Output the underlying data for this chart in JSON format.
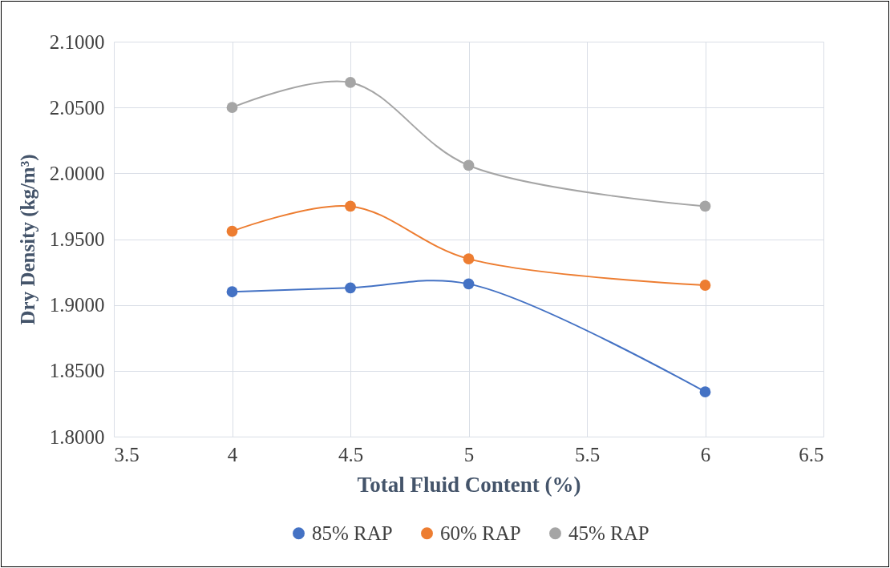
{
  "chart_data": {
    "type": "line",
    "xlabel": "Total Fluid Content (%)",
    "ylabel": "Dry Density (kg/m³)",
    "x": [
      4,
      4.5,
      5,
      6
    ],
    "series": [
      {
        "name": "85% RAP",
        "color": "#4472c4",
        "values": [
          1.91,
          1.913,
          1.916,
          1.834
        ]
      },
      {
        "name": "60% RAP",
        "color": "#ed7d31",
        "values": [
          1.956,
          1.975,
          1.935,
          1.915
        ]
      },
      {
        "name": "45% RAP",
        "color": "#a5a5a5",
        "values": [
          2.05,
          2.069,
          2.006,
          1.975
        ]
      }
    ],
    "xlim": [
      3.5,
      6.5
    ],
    "xticks": [
      3.5,
      4,
      4.5,
      5,
      5.5,
      6,
      6.5
    ],
    "ylim": [
      1.8,
      2.1
    ],
    "yticks": [
      {
        "value": 1.8,
        "label": "1.8000"
      },
      {
        "value": 1.85,
        "label": "1.8500"
      },
      {
        "value": 1.9,
        "label": "1.9000"
      },
      {
        "value": 1.95,
        "label": "1.9500"
      },
      {
        "value": 2.0,
        "label": "2.0000"
      },
      {
        "value": 2.05,
        "label": "2.0500"
      },
      {
        "value": 2.1,
        "label": "2.1000"
      }
    ],
    "grid": true,
    "legend": "bottom",
    "marker": "circle",
    "line_style": "solid"
  }
}
